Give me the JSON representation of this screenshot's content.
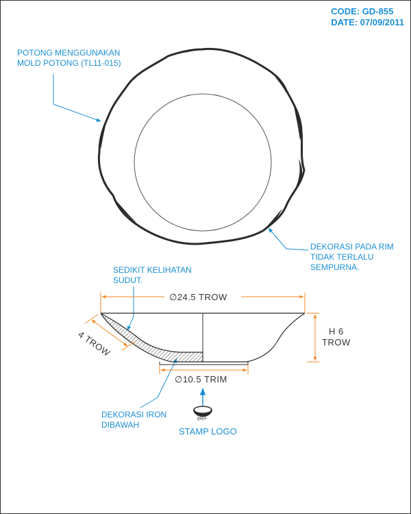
{
  "header": {
    "code": "CODE: GD-855",
    "date": "DATE: 07/09/2011"
  },
  "notes": {
    "cut_line1": "POTONG MENGGUNAKAN",
    "cut_line2": "MOLD POTONG (TL11-015)",
    "rim_line1": "DEKORASI PADA RIM",
    "rim_line2": "TIDAK TERLALU",
    "rim_line3": "SEMPURNA.",
    "corner_line1": "SEDIKIT KELIHATAN",
    "corner_line2": "SUDUT.",
    "iron_line1": "DEKORASI IRON",
    "iron_line2": "DIBAWAH",
    "stamp": "STAMP LOGO"
  },
  "dimensions": {
    "diameter_top": "∅24.5 TROW",
    "height_line1": "H 6",
    "height_line2": "TROW",
    "thickness": "4 TROW",
    "diameter_base": "∅10.5 TRIM"
  },
  "logo_text": "gaya",
  "colors": {
    "annotation": "#1a8fd6",
    "dimension": "#f08a24",
    "line": "#333333"
  }
}
